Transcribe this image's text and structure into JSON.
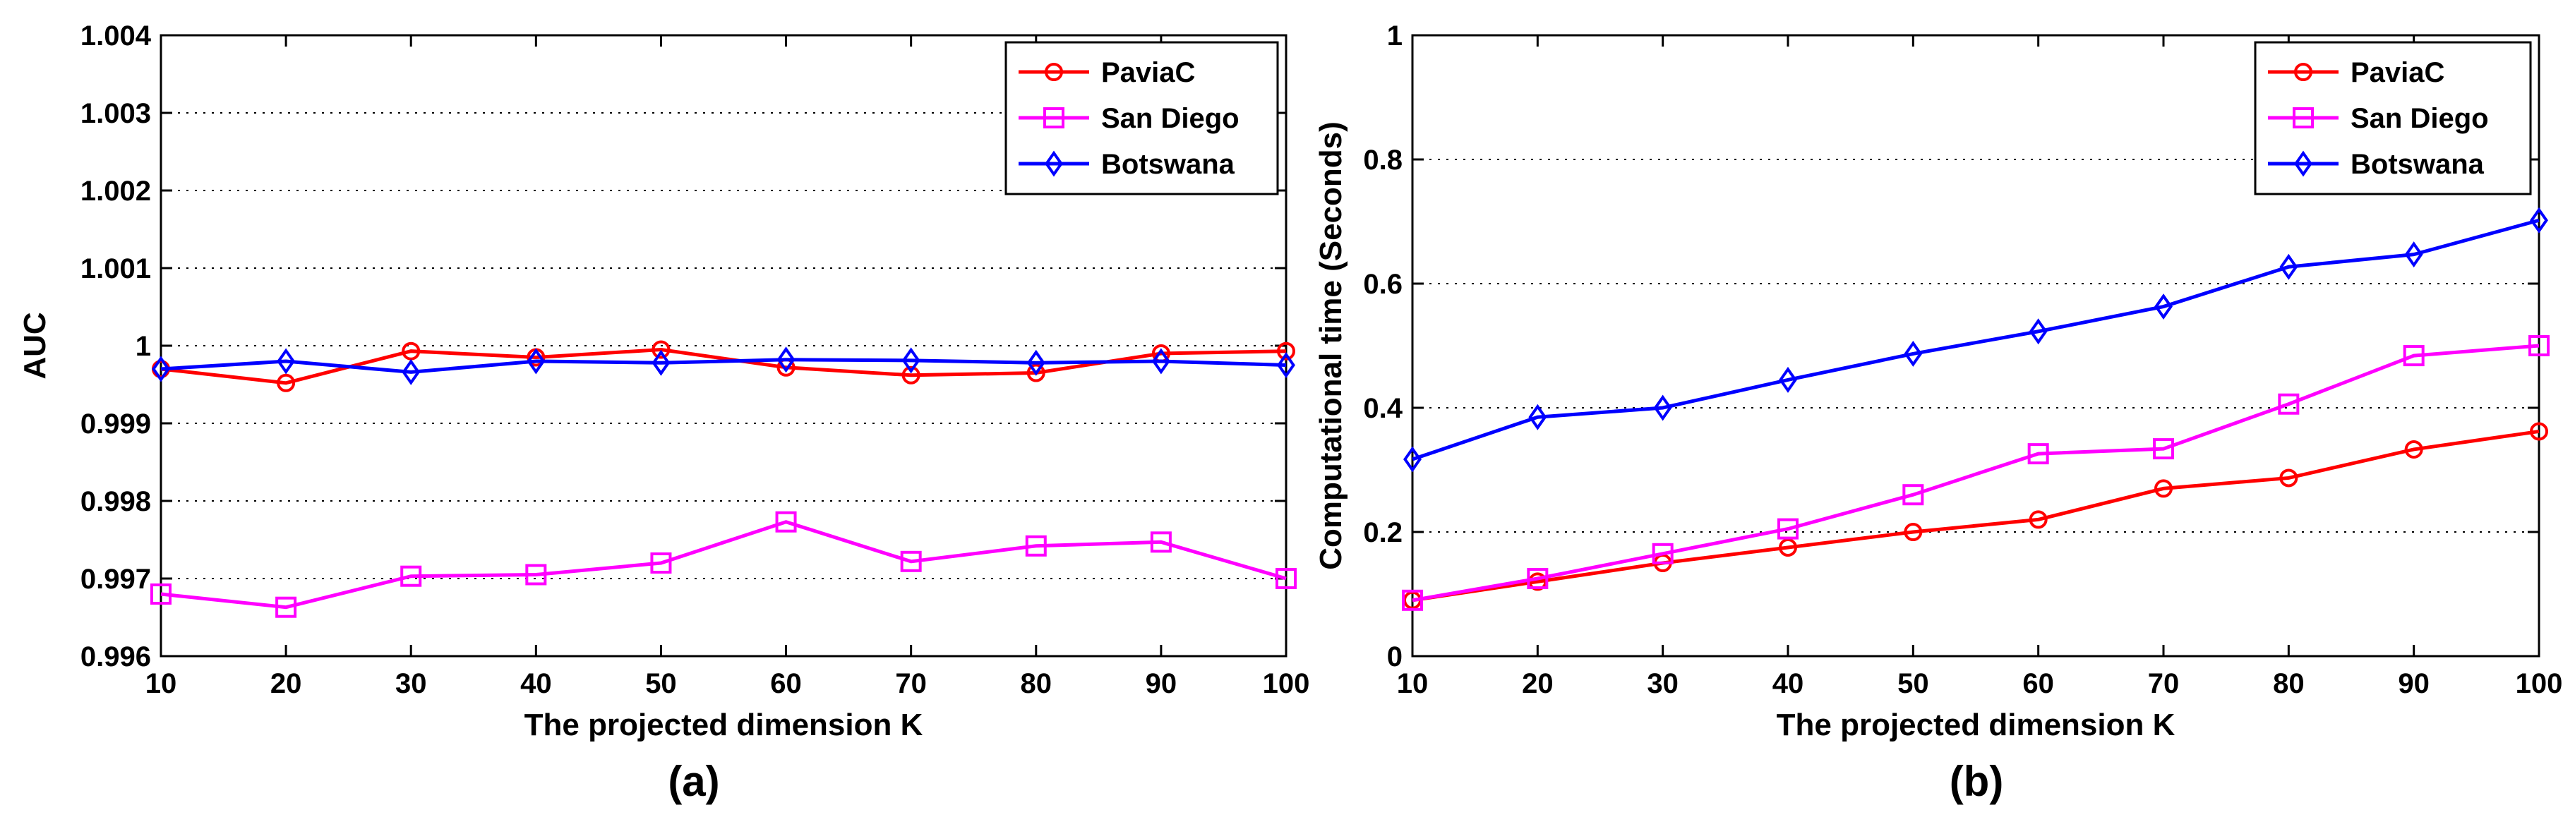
{
  "chart_data": [
    {
      "type": "line",
      "panel_label": "(a)",
      "title": "",
      "xlabel": "The projected dimension K",
      "ylabel": "AUC",
      "x": [
        10,
        20,
        30,
        40,
        50,
        60,
        70,
        80,
        90,
        100
      ],
      "xlim": [
        10,
        100
      ],
      "ylim": [
        0.996,
        1.004
      ],
      "xticks": [
        10,
        20,
        30,
        40,
        50,
        60,
        70,
        80,
        90,
        100
      ],
      "xtick_labels": [
        "10",
        "20",
        "30",
        "40",
        "50",
        "60",
        "70",
        "80",
        "90",
        "100"
      ],
      "yticks": [
        0.996,
        0.997,
        0.998,
        0.999,
        1.0,
        1.001,
        1.002,
        1.003,
        1.004
      ],
      "ytick_labels": [
        "0.996",
        "0.997",
        "0.998",
        "0.999",
        "1",
        "1.001",
        "1.002",
        "1.003",
        "1.004"
      ],
      "grid": "horizontal dotted",
      "legend_position": "top-right",
      "series": [
        {
          "name": "PaviaC",
          "color": "#ff0000",
          "marker": "circle",
          "values": [
            0.9997,
            0.99952,
            0.99993,
            0.99985,
            0.99995,
            0.99972,
            0.99962,
            0.99965,
            0.9999,
            0.99993
          ]
        },
        {
          "name": "San Diego",
          "color": "#ff00ff",
          "marker": "square",
          "values": [
            0.9968,
            0.99663,
            0.99703,
            0.99705,
            0.9972,
            0.99773,
            0.99722,
            0.99742,
            0.99747,
            0.997
          ]
        },
        {
          "name": "Botswana",
          "color": "#0000ff",
          "marker": "diamond",
          "values": [
            0.9997,
            0.9998,
            0.99966,
            0.9998,
            0.99978,
            0.99982,
            0.99981,
            0.99978,
            0.9998,
            0.99975
          ]
        }
      ]
    },
    {
      "type": "line",
      "panel_label": "(b)",
      "title": "",
      "xlabel": "The projected dimension K",
      "ylabel": "Computational time (Seconds)",
      "x": [
        10,
        20,
        30,
        40,
        50,
        60,
        70,
        80,
        90,
        100
      ],
      "xlim": [
        10,
        100
      ],
      "ylim": [
        0,
        1
      ],
      "xticks": [
        10,
        20,
        30,
        40,
        50,
        60,
        70,
        80,
        90,
        100
      ],
      "xtick_labels": [
        "10",
        "20",
        "30",
        "40",
        "50",
        "60",
        "70",
        "80",
        "90",
        "100"
      ],
      "yticks": [
        0,
        0.2,
        0.4,
        0.6,
        0.8,
        1
      ],
      "ytick_labels": [
        "0",
        "0.2",
        "0.4",
        "0.6",
        "0.8",
        "1"
      ],
      "grid": "horizontal dotted",
      "legend_position": "top-right",
      "series": [
        {
          "name": "PaviaC",
          "color": "#ff0000",
          "marker": "circle",
          "values": [
            0.09,
            0.12,
            0.15,
            0.175,
            0.2,
            0.22,
            0.27,
            0.287,
            0.333,
            0.362
          ]
        },
        {
          "name": "San Diego",
          "color": "#ff00ff",
          "marker": "square",
          "values": [
            0.09,
            0.125,
            0.165,
            0.205,
            0.26,
            0.326,
            0.334,
            0.406,
            0.484,
            0.5
          ]
        },
        {
          "name": "Botswana",
          "color": "#0000ff",
          "marker": "diamond",
          "values": [
            0.317,
            0.385,
            0.4,
            0.445,
            0.487,
            0.523,
            0.563,
            0.627,
            0.647,
            0.702
          ]
        }
      ]
    }
  ]
}
